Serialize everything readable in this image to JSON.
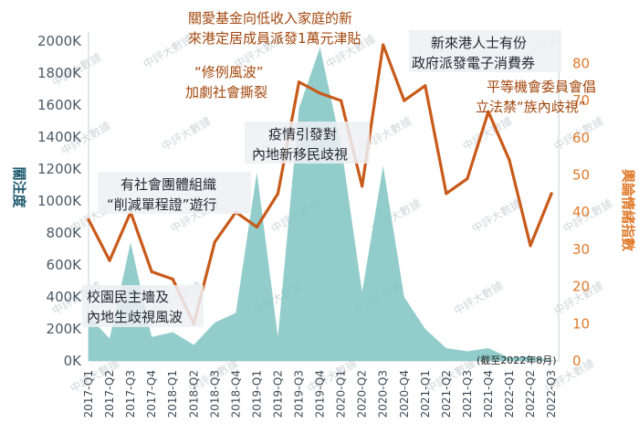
{
  "chart_data": {
    "type": "area+line",
    "categories": [
      "2017-Q1",
      "2017-Q2",
      "2017-Q3",
      "2017-Q4",
      "2018-Q1",
      "2018-Q2",
      "2018-Q3",
      "2018-Q4",
      "2019-Q1",
      "2019-Q2",
      "2019-Q3",
      "2019-Q4",
      "2020-Q1",
      "2020-Q2",
      "2020-Q3",
      "2020-Q4",
      "2021-Q1",
      "2021-Q2",
      "2021-Q3",
      "2021-Q4",
      "2022-Q1",
      "2022-Q2",
      "2022-Q3"
    ],
    "ylabel": "關注度",
    "y2label": "輿論情緒指數",
    "ylim": [
      0,
      2000000
    ],
    "y2lim": [
      0,
      86
    ],
    "yticks": [
      0,
      200000,
      400000,
      600000,
      800000,
      1000000,
      1200000,
      1400000,
      1600000,
      1800000,
      2000000
    ],
    "ytick_labels": [
      "0K",
      "200K",
      "400K",
      "600K",
      "800K",
      "1000K",
      "1200K",
      "1400K",
      "1600K",
      "1800K",
      "2000K"
    ],
    "y2ticks": [
      0,
      10,
      20,
      30,
      40,
      50,
      60,
      70,
      80
    ],
    "y2tick_labels": [
      "0",
      "10",
      "20",
      "30",
      "40",
      "50",
      "60",
      "70",
      "80"
    ],
    "series": [
      {
        "kind": "area",
        "axis": "left",
        "color": "#7fc4c2",
        "values": [
          280000,
          140000,
          740000,
          150000,
          180000,
          100000,
          240000,
          300000,
          1180000,
          150000,
          1580000,
          1960000,
          1350000,
          430000,
          1220000,
          400000,
          200000,
          80000,
          60000,
          80000,
          20000,
          30000,
          5000
        ]
      },
      {
        "kind": "line",
        "axis": "right",
        "color": "#c85a1a",
        "values": [
          38,
          27,
          40,
          24,
          22,
          10,
          32,
          40,
          36,
          45,
          75,
          72,
          70,
          47,
          85,
          70,
          74,
          45,
          49,
          67,
          54,
          31,
          45
        ]
      }
    ],
    "annotations": [
      {
        "lines": [
          "校園民主墻及",
          "內地生歧視風波"
        ],
        "color": "dark"
      },
      {
        "lines": [
          "有社會團體組織",
          "“削減單程證”遊行"
        ],
        "color": "dark"
      },
      {
        "lines": [
          "“修例風波”",
          "加劇社會撕裂"
        ],
        "color": "orange"
      },
      {
        "lines": [
          "疫情引發對",
          "內地新移民歧視"
        ],
        "color": "dark"
      },
      {
        "lines": [
          "關愛基金向低收入家庭的新",
          "來港定居成員派發1萬元津貼"
        ],
        "color": "orange"
      },
      {
        "lines": [
          "新來港人士有份",
          "政府派發電子消費券"
        ],
        "color": "dark"
      },
      {
        "lines": [
          "平等機會委員會倡",
          "立法禁“族內歧視”"
        ],
        "color": "orange"
      }
    ],
    "note": "(截至2022年8月)",
    "watermark": "中評大數據"
  }
}
